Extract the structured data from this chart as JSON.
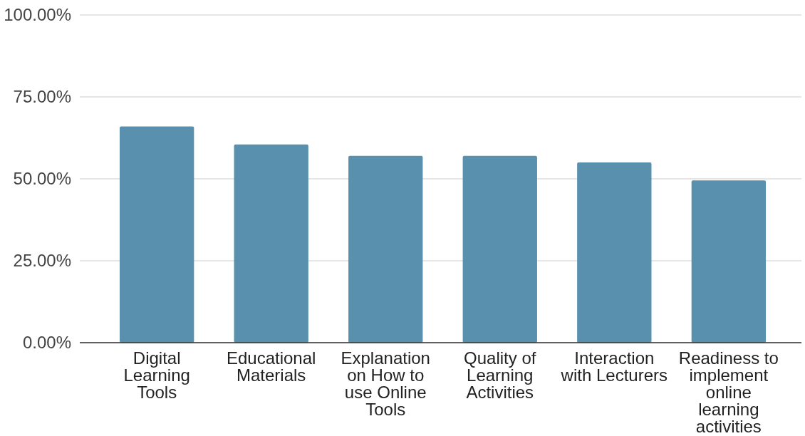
{
  "chart_data": {
    "type": "bar",
    "categories": [
      "Digital Learning Tools",
      "Educational Materials",
      "Explanation on How to use Online Tools",
      "Quality of Learning Activities",
      "Interaction with Lecturers",
      "Readiness to implement online learning activities"
    ],
    "values": [
      66,
      60.5,
      57,
      57,
      55,
      49.5
    ],
    "color": "#5890ad",
    "ylim": [
      0,
      100
    ],
    "yticks": [
      {
        "value": 0,
        "label": "0.00%"
      },
      {
        "value": 25,
        "label": "25.00%"
      },
      {
        "value": 50,
        "label": "50.00%"
      },
      {
        "value": 75,
        "label": "75.00%"
      },
      {
        "value": 100,
        "label": "100.00%"
      }
    ],
    "grid": "y"
  }
}
